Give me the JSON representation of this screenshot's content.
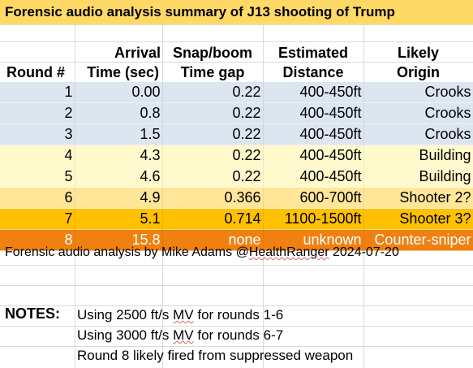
{
  "title": "Forensic audio analysis summary of J13 shooting of Trump",
  "headers": {
    "round": "Round #",
    "arrival_top": "Arrival",
    "arrival_bottom": "Time (sec)",
    "snap_top": "Snap/boom",
    "snap_bottom": "Time gap",
    "distance_top": "Estimated",
    "distance_bottom": "Distance",
    "origin_top": "Likely",
    "origin_bottom": "Origin"
  },
  "rows": [
    {
      "round": "1",
      "arrival": "0.00",
      "gap": "0.22",
      "distance": "400-450ft",
      "origin": "Crooks",
      "color": "#dce6f1"
    },
    {
      "round": "2",
      "arrival": "0.8",
      "gap": "0.22",
      "distance": "400-450ft",
      "origin": "Crooks",
      "color": "#dce6f1"
    },
    {
      "round": "3",
      "arrival": "1.5",
      "gap": "0.22",
      "distance": "400-450ft",
      "origin": "Crooks",
      "color": "#dce6f1"
    },
    {
      "round": "4",
      "arrival": "4.3",
      "gap": "0.22",
      "distance": "400-450ft",
      "origin": "Building",
      "color": "#fff9cc"
    },
    {
      "round": "5",
      "arrival": "4.6",
      "gap": "0.22",
      "distance": "400-450ft",
      "origin": "Building",
      "color": "#fff9cc"
    },
    {
      "round": "6",
      "arrival": "4.9",
      "gap": "0.366",
      "distance": "600-700ft",
      "origin": "Shooter 2?",
      "color": "#ffe699"
    },
    {
      "round": "7",
      "arrival": "5.1",
      "gap": "0.714",
      "distance": "1100-1500ft",
      "origin": "Shooter 3?",
      "color": "#ffc000"
    },
    {
      "round": "8",
      "arrival": "15.8",
      "gap": "none",
      "distance": "unknown",
      "origin": "Counter-sniper",
      "color": "#f08010",
      "text_color": "#ffffff"
    }
  ],
  "footer": {
    "prefix": "Forensic audio analysis by Mike Adams @",
    "handle": "HealthRanger",
    "suffix": " 2024-07-20"
  },
  "notes": {
    "label": "NOTES:",
    "line1_pre": "Using 2500 ft/s ",
    "line1_mv": "MV",
    "line1_post": " for rounds 1-6",
    "line2_pre": "Using 3000 ft/s ",
    "line2_mv": "MV",
    "line2_post": " for rounds 6-7",
    "line3": "Round 8 likely fired from suppressed weapon"
  }
}
